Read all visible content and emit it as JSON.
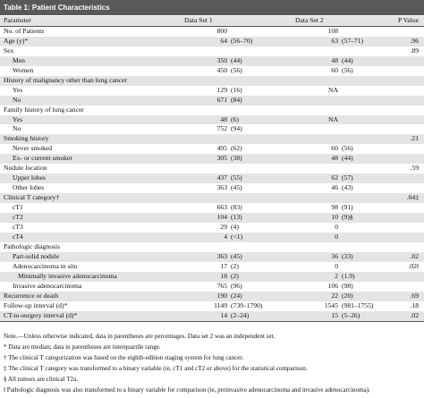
{
  "title": "Table 1: Patient Characteristics",
  "columns": [
    "Parameter",
    "Data Set 1",
    "Data Set 2",
    "P Value"
  ],
  "rows": [
    {
      "label": "No. of Patients",
      "indent": 0,
      "ds1_n": "800",
      "ds1_pct": "",
      "ds2_n": "108",
      "ds2_pct": "",
      "p": ""
    },
    {
      "label": "Age (y)*",
      "indent": 0,
      "ds1_n": "64",
      "ds1_pct": "(56–70)",
      "ds2_n": "63",
      "ds2_pct": "(57–71)",
      "p": ".96"
    },
    {
      "label": "Sex",
      "indent": 0,
      "ds1_n": "",
      "ds1_pct": "",
      "ds2_n": "",
      "ds2_pct": "",
      "p": ".89"
    },
    {
      "label": "Men",
      "indent": 1,
      "ds1_n": "350",
      "ds1_pct": "(44)",
      "ds2_n": "48",
      "ds2_pct": "(44)",
      "p": ""
    },
    {
      "label": "Women",
      "indent": 1,
      "ds1_n": "450",
      "ds1_pct": "(56)",
      "ds2_n": "60",
      "ds2_pct": "(56)",
      "p": ""
    },
    {
      "label": "History of malignancy other than lung cancer",
      "indent": 0,
      "ds1_n": "",
      "ds1_pct": "",
      "ds2_n": "",
      "ds2_pct": "",
      "p": ""
    },
    {
      "label": "Yes",
      "indent": 1,
      "ds1_n": "129",
      "ds1_pct": "(16)",
      "ds2_n": "NA",
      "ds2_pct": "",
      "p": ""
    },
    {
      "label": "No",
      "indent": 1,
      "ds1_n": "671",
      "ds1_pct": "(84)",
      "ds2_n": "",
      "ds2_pct": "",
      "p": ""
    },
    {
      "label": "Family history of lung cancer",
      "indent": 0,
      "ds1_n": "",
      "ds1_pct": "",
      "ds2_n": "",
      "ds2_pct": "",
      "p": ""
    },
    {
      "label": "Yes",
      "indent": 1,
      "ds1_n": "48",
      "ds1_pct": "(6)",
      "ds2_n": "NA",
      "ds2_pct": "",
      "p": ""
    },
    {
      "label": "No",
      "indent": 1,
      "ds1_n": "752",
      "ds1_pct": "(94)",
      "ds2_n": "",
      "ds2_pct": "",
      "p": ""
    },
    {
      "label": "Smoking history",
      "indent": 0,
      "ds1_n": "",
      "ds1_pct": "",
      "ds2_n": "",
      "ds2_pct": "",
      "p": ".21"
    },
    {
      "label": "Never smoked",
      "indent": 1,
      "ds1_n": "495",
      "ds1_pct": "(62)",
      "ds2_n": "60",
      "ds2_pct": "(56)",
      "p": ""
    },
    {
      "label": "Ex- or current smoker",
      "indent": 1,
      "ds1_n": "305",
      "ds1_pct": "(38)",
      "ds2_n": "48",
      "ds2_pct": "(44)",
      "p": ""
    },
    {
      "label": "Nodule location",
      "indent": 0,
      "ds1_n": "",
      "ds1_pct": "",
      "ds2_n": "",
      "ds2_pct": "",
      "p": ".59"
    },
    {
      "label": "Upper lobes",
      "indent": 1,
      "ds1_n": "437",
      "ds1_pct": "(55)",
      "ds2_n": "62",
      "ds2_pct": "(57)",
      "p": ""
    },
    {
      "label": "Other lobes",
      "indent": 1,
      "ds1_n": "363",
      "ds1_pct": "(45)",
      "ds2_n": "46",
      "ds2_pct": "(43)",
      "p": ""
    },
    {
      "label": "Clinical T category†",
      "indent": 0,
      "ds1_n": "",
      "ds1_pct": "",
      "ds2_n": "",
      "ds2_pct": "",
      "p": ".04‡"
    },
    {
      "label": "cT1",
      "indent": 1,
      "ds1_n": "663",
      "ds1_pct": "(83)",
      "ds2_n": "98",
      "ds2_pct": "(91)",
      "p": ""
    },
    {
      "label": "cT2",
      "indent": 1,
      "ds1_n": "104",
      "ds1_pct": "(13)",
      "ds2_n": "10",
      "ds2_pct": "(9)§",
      "p": ""
    },
    {
      "label": "cT3",
      "indent": 1,
      "ds1_n": "29",
      "ds1_pct": "(4)",
      "ds2_n": "0",
      "ds2_pct": "",
      "p": ""
    },
    {
      "label": "cT4",
      "indent": 1,
      "ds1_n": "4",
      "ds1_pct": "(<1)",
      "ds2_n": "0",
      "ds2_pct": "",
      "p": ""
    },
    {
      "label": "Pathologic diagnosis",
      "indent": 0,
      "ds1_n": "",
      "ds1_pct": "",
      "ds2_n": "",
      "ds2_pct": "",
      "p": ""
    },
    {
      "label": "Part-solid nodule",
      "indent": 1,
      "ds1_n": "363",
      "ds1_pct": "(45)",
      "ds2_n": "36",
      "ds2_pct": "(33)",
      "p": ".02"
    },
    {
      "label": "Adenocarcinoma in situ",
      "indent": 1,
      "ds1_n": "17",
      "ds1_pct": "(2)",
      "ds2_n": "0",
      "ds2_pct": "",
      "p": ".02‖"
    },
    {
      "label": "Minimally invasive adenocarcinoma",
      "indent": 2,
      "ds1_n": "18",
      "ds1_pct": "(2)",
      "ds2_n": "2",
      "ds2_pct": "(1.9)",
      "p": ""
    },
    {
      "label": "Invasive adenocarcinoma",
      "indent": 1,
      "ds1_n": "765",
      "ds1_pct": "(96)",
      "ds2_n": "106",
      "ds2_pct": "(98)",
      "p": ""
    },
    {
      "label": "Recurrence or death",
      "indent": 0,
      "ds1_n": "190",
      "ds1_pct": "(24)",
      "ds2_n": "22",
      "ds2_pct": "(20)",
      "p": ".69"
    },
    {
      "label": "Follow-up interval (d)*",
      "indent": 0,
      "ds1_n": "1149",
      "ds1_pct": "(739–1790)",
      "ds2_n": "1545",
      "ds2_pct": "(981–1755)",
      "p": ".18"
    },
    {
      "label": "CT-to-surgery interval (d)*",
      "indent": 0,
      "ds1_n": "14",
      "ds1_pct": "(2–24)",
      "ds2_n": "15",
      "ds2_pct": "(5–26)",
      "p": ".02"
    }
  ],
  "notes": [
    "Note.—Unless otherwise indicated, data in parentheses are percentages. Data set 2 was an independent set.",
    "* Data are median; data in parentheses are interquartile range.",
    "† The clinical T categorization was based on the eighth-edition staging system for lung cancer.",
    "‡ The clinical T category was transformed to a binary variable (ie, cT1 and cT2 or above) for the statistical comparison.",
    "§ All tumors are clinical T2a.",
    "‖ Pathologic diagnosis was also transformed to a binary variable for comparison (ie, preinvasive adenocarcinoma and invasive adenocarcinoma)."
  ]
}
